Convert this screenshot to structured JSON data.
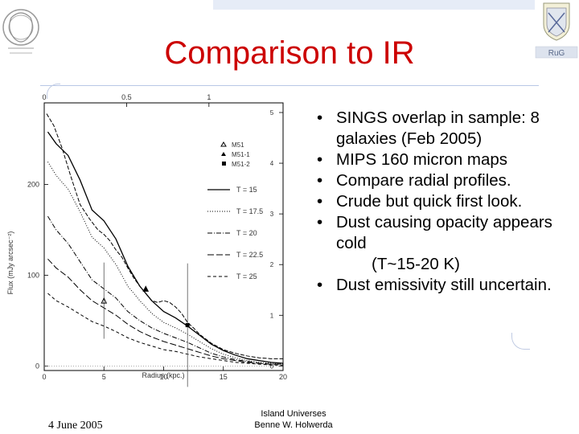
{
  "slide": {
    "title": "Comparison to IR",
    "bullets": [
      {
        "text": "SINGS overlap in sample: 8 galaxies (Feb 2005)"
      },
      {
        "text": "MIPS 160 micron maps"
      },
      {
        "text": "Compare radial profiles."
      },
      {
        "text": "Crude but quick first look."
      },
      {
        "text": "Dust causing opacity appears cold",
        "extra": "(T~15-20 K)"
      },
      {
        "text": "Dust emissivity still uncertain."
      }
    ],
    "footer": {
      "date": "4 June 2005",
      "center_line1": "Island Universes",
      "center_line2": "Benne W. Holwerda"
    },
    "logo_right_text": "RuG",
    "colors": {
      "title": "#cc0000",
      "topbar": "#e6ecf7",
      "accent": "#b8c7e6"
    }
  },
  "chart_data": {
    "type": "line",
    "xlabel": "Radius (kpc.)",
    "ylabel": "Flux (mJy arcsec⁻²)",
    "x_ticks": [
      "0",
      "5",
      "10",
      "15",
      "20"
    ],
    "xlim": [
      0,
      20
    ],
    "y_ticks": [
      "0",
      "100",
      "200"
    ],
    "ylim": [
      -5,
      290
    ],
    "top_ticks": [
      "0",
      "0.5",
      "1"
    ],
    "right_ticks": [
      "0",
      "1",
      "2",
      "3",
      "4",
      "5"
    ],
    "legend_markers": [
      "M51",
      "M51-1",
      "M51-2"
    ],
    "legend": "top-right",
    "series": [
      {
        "name": "T = 15",
        "style": "solid",
        "x": [
          0.3,
          1,
          2,
          3,
          4,
          5,
          6,
          7,
          8,
          9,
          10,
          11,
          12,
          13,
          14,
          15,
          16,
          17,
          18,
          19,
          20
        ],
        "y": [
          258,
          245,
          232,
          205,
          172,
          160,
          140,
          110,
          88,
          72,
          60,
          53,
          44,
          34,
          24,
          17,
          12,
          8,
          6,
          4,
          3
        ]
      },
      {
        "name": "T = 17.5",
        "style": "dotted",
        "x": [
          0.3,
          1,
          2,
          3,
          4,
          5,
          6,
          7,
          8,
          9,
          10,
          11,
          12,
          13,
          14,
          15,
          16,
          17,
          18,
          19,
          20
        ],
        "y": [
          225,
          210,
          195,
          170,
          142,
          130,
          112,
          88,
          72,
          58,
          48,
          42,
          35,
          27,
          19,
          13,
          9,
          6,
          4,
          3,
          2
        ]
      },
      {
        "name": "T = 20",
        "style": "dashdot",
        "x": [
          0.3,
          1,
          2,
          3,
          4,
          5,
          6,
          7,
          8,
          9,
          10,
          11,
          12,
          13,
          14,
          15,
          16,
          17,
          18,
          19,
          20
        ],
        "y": [
          165,
          150,
          135,
          115,
          95,
          85,
          75,
          60,
          50,
          42,
          36,
          31,
          26,
          20,
          14,
          10,
          7,
          5,
          3,
          2,
          2
        ]
      },
      {
        "name": "T = 22.5",
        "style": "longdash",
        "x": [
          0.3,
          1,
          2,
          3,
          4,
          5,
          6,
          7,
          8,
          9,
          10,
          11,
          12,
          13,
          14,
          15,
          16,
          17,
          18,
          19,
          20
        ],
        "y": [
          118,
          108,
          98,
          84,
          72,
          64,
          56,
          46,
          38,
          32,
          27,
          23,
          19,
          15,
          11,
          8,
          6,
          4,
          3,
          2,
          2
        ]
      },
      {
        "name": "T = 25",
        "style": "dashed",
        "x": [
          0.3,
          1,
          2,
          3,
          4,
          5,
          6,
          7,
          8,
          9,
          10,
          11,
          12,
          13,
          14,
          15,
          16,
          17,
          18,
          19,
          20
        ],
        "y": [
          80,
          72,
          65,
          57,
          49,
          44,
          38,
          31,
          26,
          22,
          18,
          16,
          13,
          10,
          8,
          6,
          4,
          3,
          2,
          1,
          1
        ]
      }
    ],
    "points": [
      {
        "x": 5,
        "y": 72,
        "err": 42,
        "marker": "M51"
      },
      {
        "x": 8.5,
        "y": 85,
        "err": 0,
        "marker": "M51-1"
      },
      {
        "x": 12,
        "y": 45,
        "err": 68,
        "marker": "M51-2"
      }
    ],
    "profile_curve": {
      "x": [
        0.2,
        0.8,
        1.5,
        2.2,
        3,
        3.8,
        4.5,
        5,
        5.5,
        6,
        6.5,
        7,
        7.5,
        8,
        8.5,
        9,
        9.5,
        10,
        10.5,
        11,
        11.5,
        12,
        12.5,
        13,
        14,
        15,
        16,
        17,
        18,
        19,
        20
      ],
      "y": [
        278,
        265,
        240,
        210,
        178,
        162,
        150,
        145,
        138,
        128,
        120,
        108,
        97,
        88,
        80,
        72,
        70,
        72,
        70,
        65,
        58,
        48,
        42,
        35,
        25,
        18,
        14,
        11,
        9,
        8,
        8
      ]
    }
  }
}
